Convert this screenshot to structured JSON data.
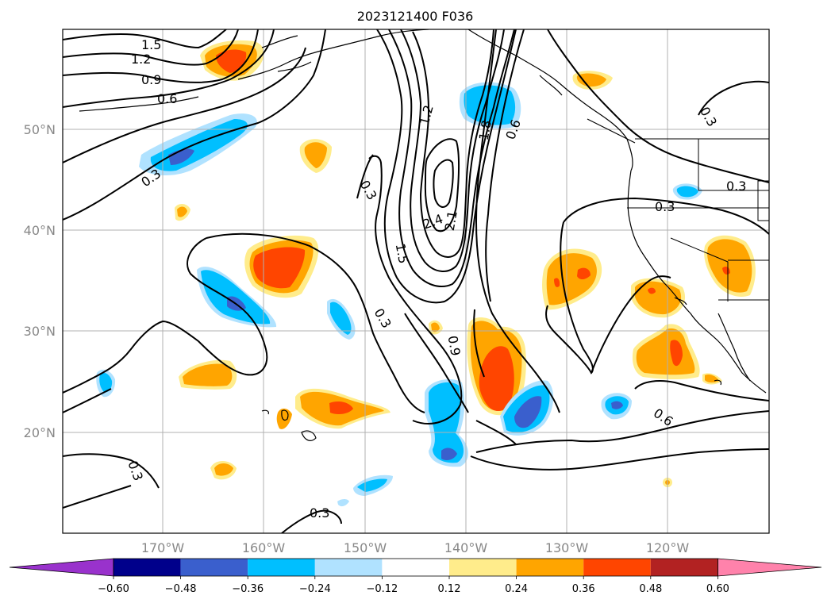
{
  "title": "2023121400 F036",
  "map": {
    "lat_labels": [
      "50°N",
      "40°N",
      "30°N",
      "20°N"
    ],
    "lon_labels": [
      "170°W",
      "160°W",
      "150°W",
      "140°W",
      "130°W",
      "120°W"
    ],
    "contour_labels": [
      "1.5",
      "1.2",
      "0.9",
      "0.6",
      "0.3",
      "0.3",
      "1.2",
      "1.5",
      "2.4",
      "2.1",
      "1.8",
      "0.6",
      "0.3",
      "0.3",
      "0.3",
      "0.9",
      "0.6",
      "0.3",
      "0.3",
      "0.3"
    ]
  },
  "colorbar": {
    "tick_labels": [
      "−0.60",
      "−0.48",
      "−0.36",
      "−0.24",
      "−0.12",
      "0.12",
      "0.24",
      "0.36",
      "0.48",
      "0.60"
    ],
    "colors": [
      "#9932cc",
      "#00008b",
      "#3a5fcd",
      "#00bfff",
      "#b0e2ff",
      "#ffffff",
      "#ffec8b",
      "#ffa500",
      "#ff4500",
      "#b22222",
      "#ff82ab"
    ]
  },
  "shade_colors": {
    "light_blue": "#b0e2ff",
    "blue": "#00bfff",
    "dark_blue": "#3a5fcd",
    "light_yellow": "#ffec8b",
    "orange": "#ffa500",
    "red": "#ff4500"
  }
}
